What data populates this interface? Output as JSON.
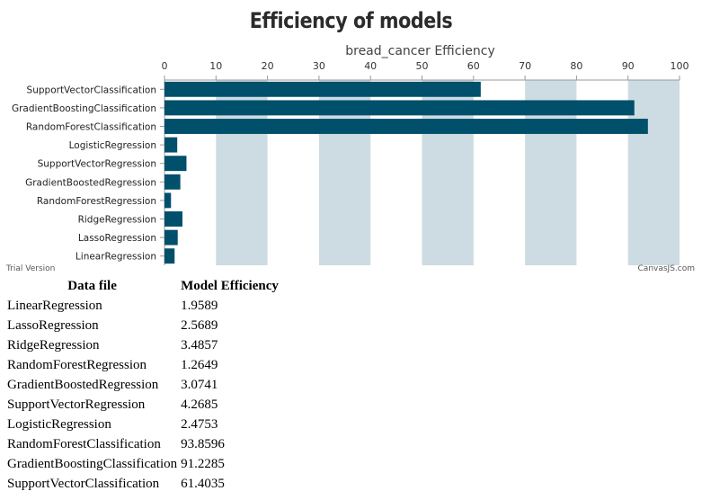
{
  "page": {
    "title": "Efficiency of models",
    "trial_label": "Trial Version",
    "brand_label": "CanvasJS.com"
  },
  "chart_data": {
    "type": "bar",
    "orientation": "horizontal",
    "title": "bread_cancer Efficiency",
    "categories": [
      "LinearRegression",
      "LassoRegression",
      "RidgeRegression",
      "RandomForestRegression",
      "GradientBoostedRegression",
      "SupportVectorRegression",
      "LogisticRegression",
      "RandomForestClassification",
      "GradientBoostingClassification",
      "SupportVectorClassification"
    ],
    "values": [
      1.9589,
      2.5689,
      3.4857,
      1.2649,
      3.0741,
      4.2685,
      2.4753,
      93.8596,
      91.2285,
      61.4035
    ],
    "xlim": [
      0,
      100
    ],
    "ticks": [
      0,
      10,
      20,
      30,
      40,
      50,
      60,
      70,
      80,
      90,
      100
    ],
    "axis_position": "top",
    "grid": "alternating bands",
    "bar_color": "#004f6b",
    "band_color": "#cddce2"
  },
  "table": {
    "headers": [
      "Data file",
      "Model Efficiency"
    ],
    "rows": [
      [
        "LinearRegression",
        "1.9589"
      ],
      [
        "LassoRegression",
        "2.5689"
      ],
      [
        "RidgeRegression",
        "3.4857"
      ],
      [
        "RandomForestRegression",
        "1.2649"
      ],
      [
        "GradientBoostedRegression",
        "3.0741"
      ],
      [
        "SupportVectorRegression",
        "4.2685"
      ],
      [
        "LogisticRegression",
        "2.4753"
      ],
      [
        "RandomForestClassification",
        "93.8596"
      ],
      [
        "GradientBoostingClassification",
        "91.2285"
      ],
      [
        "SupportVectorClassification",
        "61.4035"
      ]
    ]
  }
}
